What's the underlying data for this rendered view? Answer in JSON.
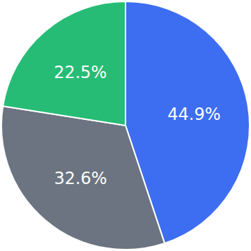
{
  "chart_data": {
    "type": "pie",
    "values": [
      44.9,
      32.6,
      22.5
    ],
    "value_labels": [
      "44.9%",
      "32.6%",
      "22.5%"
    ],
    "colors": [
      "#3d6ef2",
      "#6b7480",
      "#26bc75"
    ],
    "data_labels": true
  }
}
